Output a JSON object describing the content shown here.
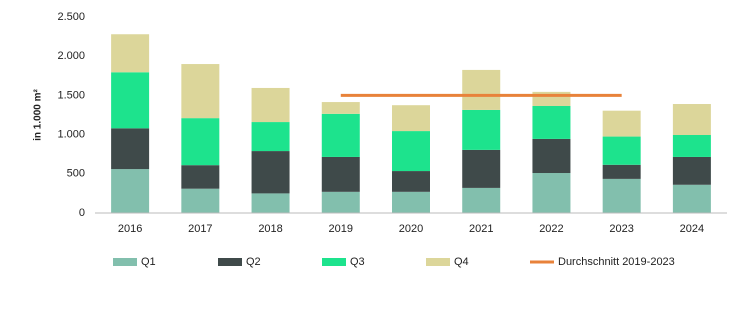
{
  "chart_data": {
    "type": "bar",
    "stacked": true,
    "y_label": "in 1.000 m²",
    "categories": [
      "2016",
      "2017",
      "2018",
      "2019",
      "2020",
      "2021",
      "2022",
      "2023",
      "2024"
    ],
    "series": [
      {
        "name": "Q1",
        "color": "#82bfad",
        "values": [
          560,
          310,
          250,
          270,
          270,
          320,
          510,
          435,
          360
        ]
      },
      {
        "name": "Q2",
        "color": "#3f4a4a",
        "values": [
          520,
          300,
          540,
          445,
          265,
          485,
          435,
          180,
          355
        ]
      },
      {
        "name": "Q3",
        "color": "#1de38d",
        "values": [
          715,
          600,
          370,
          550,
          510,
          510,
          420,
          360,
          280
        ]
      },
      {
        "name": "Q4",
        "color": "#dcd69a",
        "values": [
          485,
          690,
          435,
          150,
          330,
          510,
          180,
          330,
          395
        ]
      },
      {
        "name": "Durchschnitt 2019-2023",
        "color": "#e8823a",
        "type": "line",
        "values": [
          null,
          null,
          null,
          1500,
          1500,
          1500,
          1500,
          1500,
          null
        ]
      }
    ],
    "ylim": [
      0,
      2500
    ],
    "yticks": [
      0,
      500,
      {
        "value": 1000,
        "label": "1.000"
      },
      {
        "value": 1500,
        "label": "1.500"
      },
      {
        "value": 2000,
        "label": "2.000"
      },
      {
        "value": 2500,
        "label": "2.500"
      }
    ],
    "grid": false,
    "legend": "bottom"
  }
}
